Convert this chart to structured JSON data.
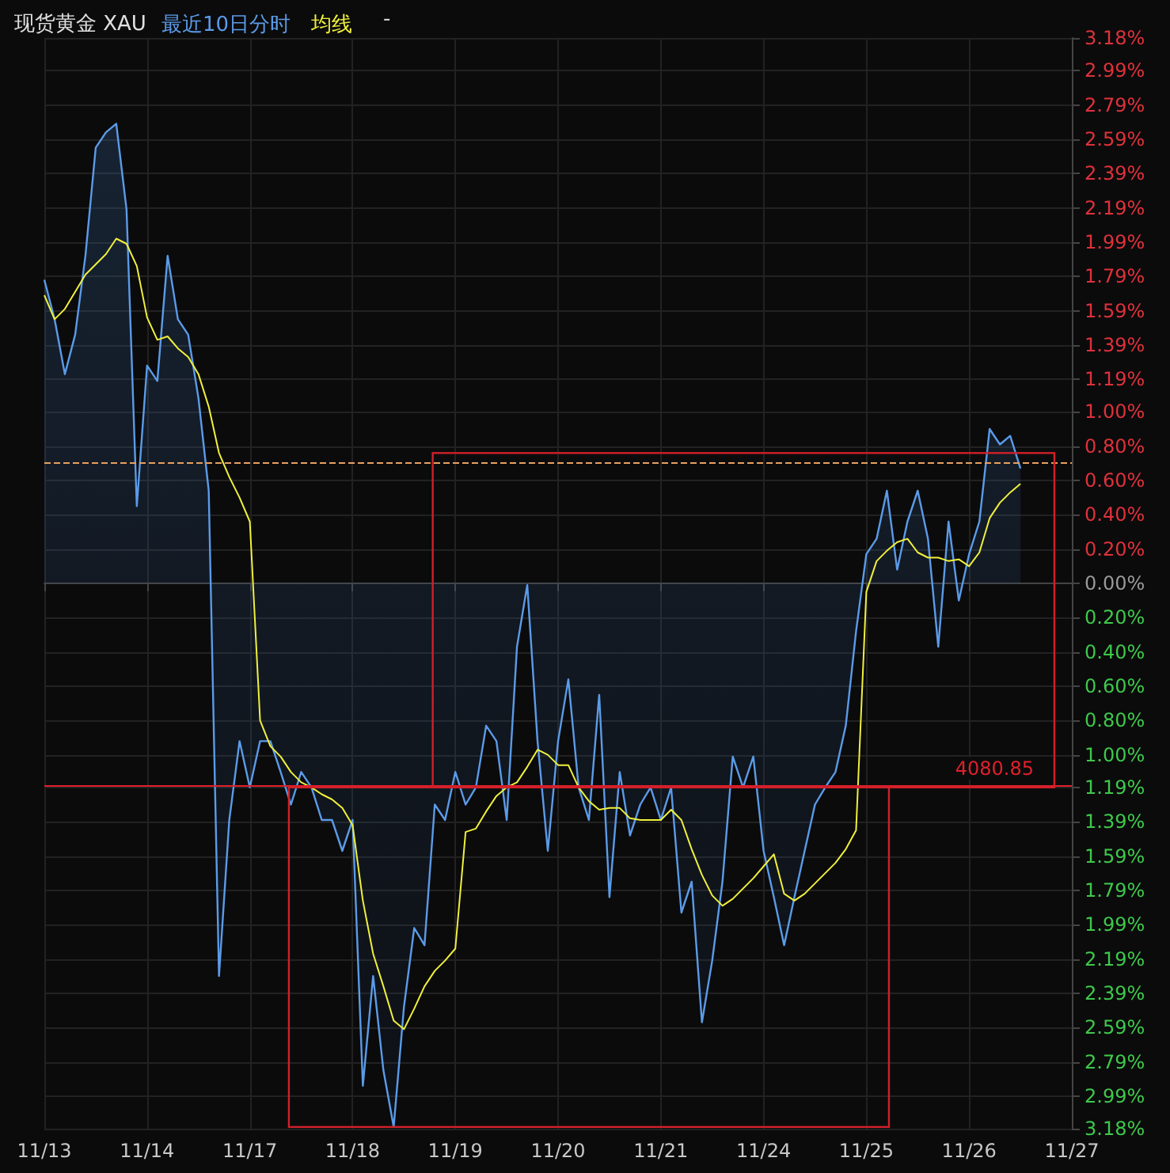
{
  "chart_data": {
    "type": "area",
    "title": "现货黄金 XAU",
    "annotations": [
      "-",
      {
        "text": "4080.85",
        "y": -1.18
      }
    ],
    "legend": "top left",
    "grid": true,
    "marker": "none",
    "categories": [
      "11/13",
      null,
      null,
      null,
      null,
      null,
      null,
      null,
      null,
      null,
      "11/14",
      null,
      null,
      null,
      null,
      null,
      null,
      null,
      null,
      null,
      "11/17",
      null,
      null,
      null,
      null,
      null,
      null,
      null,
      null,
      null,
      "11/18",
      null,
      null,
      null,
      null,
      null,
      null,
      null,
      null,
      null,
      "11/19",
      null,
      null,
      null,
      null,
      null,
      null,
      null,
      null,
      null,
      "11/20",
      null,
      null,
      null,
      null,
      null,
      null,
      null,
      null,
      null,
      "11/21",
      null,
      null,
      null,
      null,
      null,
      null,
      null,
      null,
      null,
      "11/24",
      null,
      null,
      null,
      null,
      null,
      null,
      null,
      null,
      null,
      "11/25",
      null,
      null,
      null,
      null,
      null,
      null,
      null,
      null,
      null,
      "11/26",
      null,
      null,
      null,
      null,
      null,
      null,
      null,
      null,
      null,
      "11/27"
    ],
    "ylim": [
      -3.18,
      3.18
    ],
    "yticks": [
      {
        "value": 3.18,
        "label": "3.18%"
      },
      {
        "value": 2.99,
        "label": "2.99%"
      },
      {
        "value": 2.79,
        "label": "2.79%"
      },
      {
        "value": 2.59,
        "label": "2.59%"
      },
      {
        "value": 2.39,
        "label": "2.39%"
      },
      {
        "value": 2.19,
        "label": "2.19%"
      },
      {
        "value": 1.99,
        "label": "1.99%"
      },
      {
        "value": 1.79,
        "label": "1.79%"
      },
      {
        "value": 1.59,
        "label": "1.59%"
      },
      {
        "value": 1.39,
        "label": "1.39%"
      },
      {
        "value": 1.19,
        "label": "1.19%"
      },
      {
        "value": 1.0,
        "label": "1.00%"
      },
      {
        "value": 0.8,
        "label": "0.80%"
      },
      {
        "value": 0.6,
        "label": "0.60%"
      },
      {
        "value": 0.4,
        "label": "0.40%"
      },
      {
        "value": 0.2,
        "label": "0.20%"
      },
      {
        "value": 0,
        "label": "0.00%"
      },
      {
        "value": -0.2,
        "label": "0.20%"
      },
      {
        "value": -0.4,
        "label": "0.40%"
      },
      {
        "value": -0.6,
        "label": "0.60%"
      },
      {
        "value": -0.8,
        "label": "0.80%"
      },
      {
        "value": -1.0,
        "label": "1.00%"
      },
      {
        "value": -1.19,
        "label": "1.19%"
      },
      {
        "value": -1.39,
        "label": "1.39%"
      },
      {
        "value": -1.59,
        "label": "1.59%"
      },
      {
        "value": -1.79,
        "label": "1.79%"
      },
      {
        "value": -1.99,
        "label": "1.99%"
      },
      {
        "value": -2.19,
        "label": "2.19%"
      },
      {
        "value": -2.39,
        "label": "2.39%"
      },
      {
        "value": -2.59,
        "label": "2.59%"
      },
      {
        "value": -2.79,
        "label": "2.79%"
      },
      {
        "value": -2.99,
        "label": "2.99%"
      },
      {
        "value": -3.18,
        "label": "3.18%"
      }
    ],
    "ref_lines": [
      {
        "axis": "y",
        "value": 0.7,
        "line_style": "dashed",
        "color": "#e8a060"
      },
      {
        "axis": "y",
        "value": -1.18,
        "color": "#e0202a"
      }
    ],
    "series": [
      {
        "name": "最近10日分时",
        "color": "#5b9be8",
        "values": [
          1.77,
          1.54,
          1.22,
          1.45,
          1.91,
          2.54,
          2.63,
          2.68,
          2.18,
          0.45,
          1.27,
          1.18,
          1.91,
          1.54,
          1.45,
          1.08,
          0.54,
          -2.29,
          -1.38,
          -0.92,
          -1.19,
          -0.92,
          -0.92,
          -1.1,
          -1.29,
          -1.1,
          -1.19,
          -1.38,
          -1.38,
          -1.56,
          -1.38,
          -2.93,
          -2.29,
          -2.84,
          -3.17,
          -2.47,
          -2.01,
          -2.11,
          -1.29,
          -1.38,
          -1.1,
          -1.29,
          -1.19,
          -0.83,
          -0.92,
          -1.38,
          -0.37,
          -0.01,
          -0.92,
          -1.56,
          -0.92,
          -0.56,
          -1.19,
          -1.38,
          -0.65,
          -1.83,
          -1.1,
          -1.47,
          -1.29,
          -1.19,
          -1.38,
          -1.19,
          -1.92,
          -1.74,
          -2.56,
          -2.2,
          -1.74,
          -1.01,
          -1.19,
          -1.01,
          -1.56,
          -1.83,
          -2.11,
          -1.83,
          -1.56,
          -1.29,
          -1.19,
          -1.1,
          -0.83,
          -0.28,
          0.17,
          0.26,
          0.54,
          0.08,
          0.36,
          0.54,
          0.26,
          -0.37,
          0.36,
          -0.1,
          0.17,
          0.36,
          0.9,
          0.81,
          0.86,
          0.67,
          null,
          null,
          null,
          null,
          null
        ]
      },
      {
        "name": "均线",
        "type": "line",
        "color": "#f0f03c",
        "values": [
          1.68,
          1.54,
          1.6,
          1.7,
          1.8,
          1.86,
          1.92,
          2.01,
          1.98,
          1.85,
          1.55,
          1.42,
          1.44,
          1.37,
          1.32,
          1.22,
          1.03,
          0.76,
          0.62,
          0.5,
          0.36,
          -0.8,
          -0.95,
          -1.01,
          -1.1,
          -1.16,
          -1.19,
          -1.23,
          -1.26,
          -1.31,
          -1.41,
          -1.85,
          -2.16,
          -2.35,
          -2.55,
          -2.6,
          -2.48,
          -2.35,
          -2.26,
          -2.2,
          -2.13,
          -1.45,
          -1.43,
          -1.33,
          -1.24,
          -1.19,
          -1.16,
          -1.07,
          -0.97,
          -1.0,
          -1.06,
          -1.06,
          -1.19,
          -1.27,
          -1.32,
          -1.31,
          -1.31,
          -1.37,
          -1.38,
          -1.38,
          -1.38,
          -1.32,
          -1.38,
          -1.55,
          -1.7,
          -1.82,
          -1.88,
          -1.84,
          -1.78,
          -1.72,
          -1.65,
          -1.58,
          -1.81,
          -1.85,
          -1.81,
          -1.75,
          -1.69,
          -1.63,
          -1.55,
          -1.44,
          -0.05,
          0.13,
          0.19,
          0.24,
          0.26,
          0.18,
          0.15,
          0.15,
          0.13,
          0.14,
          0.1,
          0.18,
          0.38,
          0.47,
          0.53,
          0.58,
          null,
          null,
          null,
          null,
          null
        ]
      }
    ]
  }
}
